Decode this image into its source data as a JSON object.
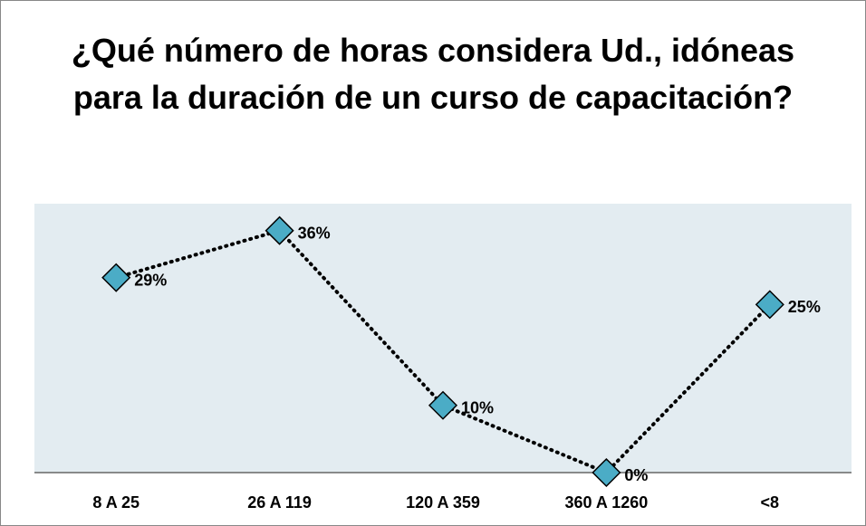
{
  "chart_data": {
    "type": "line",
    "title": "¿Qué número de horas considera Ud., idóneas para la duración de un curso de capacitación?",
    "categories": [
      "8 A 25",
      "26 A 119",
      "120 A 359",
      "360 A 1260",
      "<8"
    ],
    "values": [
      29,
      36,
      10,
      0,
      25
    ],
    "value_labels": [
      "29%",
      "36%",
      "10%",
      "0%",
      "25%"
    ],
    "color": "#4bacc6",
    "ylim": [
      0,
      40
    ]
  }
}
